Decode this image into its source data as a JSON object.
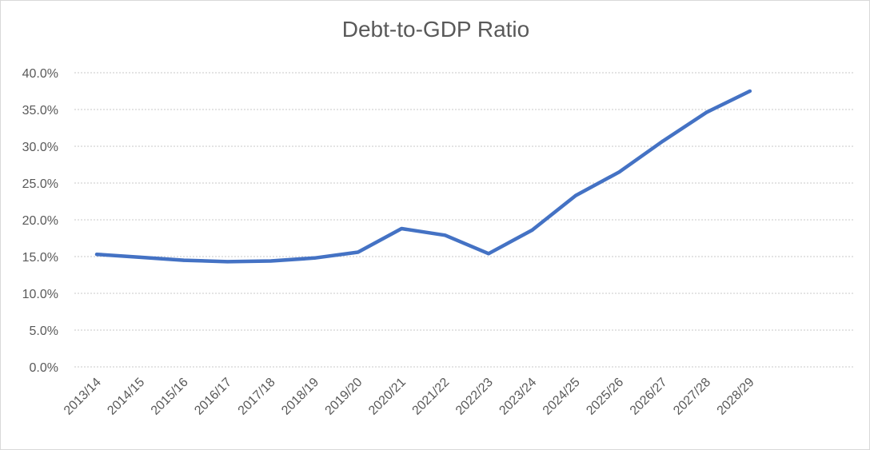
{
  "chart_data": {
    "type": "line",
    "title": "Debt-to-GDP Ratio",
    "xlabel": "",
    "ylabel": "",
    "categories": [
      "2013/14",
      "2014/15",
      "2015/16",
      "2016/17",
      "2017/18",
      "2018/19",
      "2019/20",
      "2020/21",
      "2021/22",
      "2022/23",
      "2023/24",
      "2024/25",
      "2025/26",
      "2026/27",
      "2027/28",
      "2028/29"
    ],
    "series": [
      {
        "values": [
          15.3,
          14.9,
          14.5,
          14.3,
          14.4,
          14.8,
          15.6,
          18.8,
          17.9,
          15.4,
          18.6,
          23.3,
          26.5,
          30.7,
          34.6,
          37.5
        ],
        "color": "#4472c4"
      }
    ],
    "ylim": [
      0,
      40
    ],
    "yticks": [
      "0.0%",
      "5.0%",
      "10.0%",
      "15.0%",
      "20.0%",
      "25.0%",
      "30.0%",
      "35.0%",
      "40.0%"
    ],
    "ytick_values": [
      0,
      5,
      10,
      15,
      20,
      25,
      30,
      35,
      40
    ],
    "grid": true,
    "legend": "none"
  }
}
